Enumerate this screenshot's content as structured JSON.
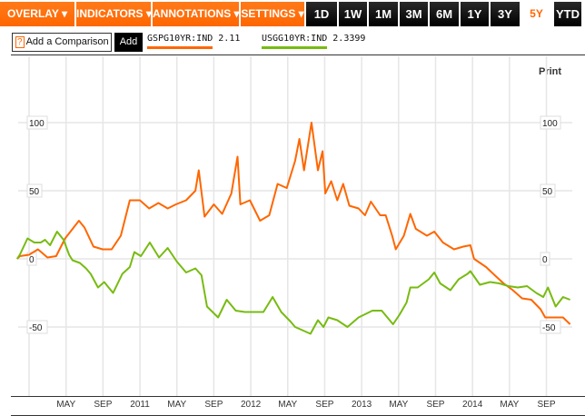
{
  "toolbar": {
    "menus": [
      "OVERLAY ▾",
      "INDICATORS ▾",
      "ANNOTATIONS ▾",
      "SETTINGS ▾"
    ],
    "ranges": [
      "1D",
      "1W",
      "1M",
      "3M",
      "6M",
      "1Y",
      "3Y",
      "5Y",
      "YTD"
    ],
    "active_range": "5Y"
  },
  "comparison": {
    "help_icon": "?",
    "placeholder": "Add a Comparison",
    "add_label": "Add"
  },
  "print_label": "Print",
  "colors": {
    "accent": "#ff6600",
    "series1": "#ff6600",
    "series2": "#77bb11"
  },
  "chart_data": {
    "type": "line",
    "title": "",
    "xlabel": "",
    "ylabel": "",
    "ylim": [
      -77,
      140
    ],
    "xlim": [
      "2009-11-22",
      "2014-11-18"
    ],
    "grid": true,
    "legend": "top-left",
    "x_ticks": [
      "MAY",
      "SEP",
      "2011",
      "MAY",
      "SEP",
      "2012",
      "MAY",
      "SEP",
      "2013",
      "MAY",
      "SEP",
      "2014",
      "MAY",
      "SEP"
    ],
    "y_ticks": [
      100,
      50,
      0,
      -50
    ],
    "y_tick_labels": [
      "100",
      "50",
      "0",
      "-50"
    ],
    "series": [
      {
        "name": "GSPG10YR:IND",
        "last": "2.11",
        "color": "#ff6600",
        "points": [
          [
            "2009-11-22",
            0
          ],
          [
            "2009-12-01",
            2
          ],
          [
            "2010-01-01",
            3
          ],
          [
            "2010-01-30",
            7
          ],
          [
            "2010-03-01",
            1
          ],
          [
            "2010-03-29",
            2
          ],
          [
            "2010-04-28",
            15
          ],
          [
            "2010-06-13",
            28
          ],
          [
            "2010-07-01",
            23
          ],
          [
            "2010-07-30",
            9
          ],
          [
            "2010-08-30",
            7
          ],
          [
            "2010-09-29",
            7
          ],
          [
            "2010-10-29",
            17
          ],
          [
            "2010-11-28",
            43
          ],
          [
            "2011-01-01",
            43
          ],
          [
            "2011-02-01",
            37
          ],
          [
            "2011-03-01",
            41
          ],
          [
            "2011-04-01",
            37
          ],
          [
            "2011-04-28",
            40
          ],
          [
            "2011-06-01",
            43
          ],
          [
            "2011-07-01",
            50
          ],
          [
            "2011-07-12",
            65
          ],
          [
            "2011-08-01",
            31
          ],
          [
            "2011-09-01",
            40
          ],
          [
            "2011-09-28",
            33
          ],
          [
            "2011-10-28",
            48
          ],
          [
            "2011-11-18",
            75
          ],
          [
            "2011-11-27",
            40
          ],
          [
            "2011-12-28",
            43
          ],
          [
            "2012-02-01",
            28
          ],
          [
            "2012-03-01",
            32
          ],
          [
            "2012-03-28",
            55
          ],
          [
            "2012-04-28",
            52
          ],
          [
            "2012-05-25",
            72
          ],
          [
            "2012-06-09",
            88
          ],
          [
            "2012-06-24",
            65
          ],
          [
            "2012-07-18",
            100
          ],
          [
            "2012-08-09",
            65
          ],
          [
            "2012-08-24",
            79
          ],
          [
            "2012-09-03",
            48
          ],
          [
            "2012-09-22",
            57
          ],
          [
            "2012-10-12",
            43
          ],
          [
            "2012-11-01",
            55
          ],
          [
            "2012-11-21",
            39
          ],
          [
            "2012-12-21",
            37
          ],
          [
            "2013-01-12",
            32
          ],
          [
            "2013-02-01",
            42
          ],
          [
            "2013-03-01",
            32
          ],
          [
            "2013-03-19",
            32
          ],
          [
            "2013-04-10",
            17
          ],
          [
            "2013-04-22",
            7
          ],
          [
            "2013-05-18",
            17
          ],
          [
            "2013-06-09",
            33
          ],
          [
            "2013-06-27",
            22
          ],
          [
            "2013-08-03",
            17
          ],
          [
            "2013-08-27",
            20
          ],
          [
            "2013-09-25",
            12
          ],
          [
            "2013-11-01",
            7
          ],
          [
            "2013-12-01",
            9
          ],
          [
            "2013-12-24",
            10
          ],
          [
            "2014-01-06",
            0
          ],
          [
            "2014-02-15",
            -6
          ],
          [
            "2014-03-13",
            -12
          ],
          [
            "2014-04-12",
            -18
          ],
          [
            "2014-05-12",
            -23
          ],
          [
            "2014-06-12",
            -29
          ],
          [
            "2014-07-12",
            -30
          ],
          [
            "2014-08-12",
            -37
          ],
          [
            "2014-08-27",
            -43
          ],
          [
            "2014-09-25",
            -43
          ],
          [
            "2014-10-25",
            -43
          ],
          [
            "2014-11-18",
            -48
          ]
        ]
      },
      {
        "name": "USGG10YR:IND",
        "last": "2.3399",
        "color": "#77bb11",
        "points": [
          [
            "2009-11-22",
            0
          ],
          [
            "2009-12-01",
            3
          ],
          [
            "2009-12-26",
            15
          ],
          [
            "2010-01-18",
            12
          ],
          [
            "2010-02-09",
            12
          ],
          [
            "2010-02-23",
            14
          ],
          [
            "2010-03-09",
            10
          ],
          [
            "2010-04-02",
            20
          ],
          [
            "2010-04-23",
            14
          ],
          [
            "2010-05-11",
            3
          ],
          [
            "2010-05-22",
            -1
          ],
          [
            "2010-06-16",
            -3
          ],
          [
            "2010-07-06",
            -7
          ],
          [
            "2010-07-21",
            -11
          ],
          [
            "2010-08-15",
            -21
          ],
          [
            "2010-09-05",
            -17
          ],
          [
            "2010-10-04",
            -25
          ],
          [
            "2010-11-04",
            -11
          ],
          [
            "2010-11-28",
            -6
          ],
          [
            "2010-12-13",
            5
          ],
          [
            "2011-01-04",
            2
          ],
          [
            "2011-02-03",
            12
          ],
          [
            "2011-03-03",
            1
          ],
          [
            "2011-04-01",
            8
          ],
          [
            "2011-05-01",
            -2
          ],
          [
            "2011-06-01",
            -10
          ],
          [
            "2011-07-01",
            -7
          ],
          [
            "2011-07-21",
            -12
          ],
          [
            "2011-08-09",
            -35
          ],
          [
            "2011-09-15",
            -43
          ],
          [
            "2011-10-13",
            -30
          ],
          [
            "2011-11-12",
            -38
          ],
          [
            "2011-12-12",
            -39
          ],
          [
            "2012-01-12",
            -39
          ],
          [
            "2012-02-12",
            -39
          ],
          [
            "2012-03-12",
            -28
          ],
          [
            "2012-04-10",
            -39
          ],
          [
            "2012-05-10",
            -46
          ],
          [
            "2012-05-25",
            -50
          ],
          [
            "2012-07-15",
            -55
          ],
          [
            "2012-08-09",
            -45
          ],
          [
            "2012-08-27",
            -50
          ],
          [
            "2012-09-13",
            -43
          ],
          [
            "2012-10-12",
            -45
          ],
          [
            "2012-11-15",
            -50
          ],
          [
            "2012-12-21",
            -43
          ],
          [
            "2013-02-06",
            -38
          ],
          [
            "2013-03-06",
            -38
          ],
          [
            "2013-04-13",
            -48
          ],
          [
            "2013-05-04",
            -41
          ],
          [
            "2013-05-27",
            -32
          ],
          [
            "2013-06-09",
            -21
          ],
          [
            "2013-07-03",
            -21
          ],
          [
            "2013-08-09",
            -15
          ],
          [
            "2013-08-27",
            -10
          ],
          [
            "2013-09-16",
            -18
          ],
          [
            "2013-10-19",
            -23
          ],
          [
            "2013-11-16",
            -15
          ],
          [
            "2013-12-15",
            -11
          ],
          [
            "2013-12-24",
            -9
          ],
          [
            "2014-01-25",
            -19
          ],
          [
            "2014-02-28",
            -17
          ],
          [
            "2014-03-28",
            -18
          ],
          [
            "2014-04-28",
            -20
          ],
          [
            "2014-05-28",
            -21
          ],
          [
            "2014-06-28",
            -20
          ],
          [
            "2014-07-28",
            -25
          ],
          [
            "2014-08-21",
            -28
          ],
          [
            "2014-09-06",
            -21
          ],
          [
            "2014-10-01",
            -35
          ],
          [
            "2014-10-25",
            -28
          ],
          [
            "2014-11-18",
            -30
          ]
        ]
      }
    ]
  }
}
